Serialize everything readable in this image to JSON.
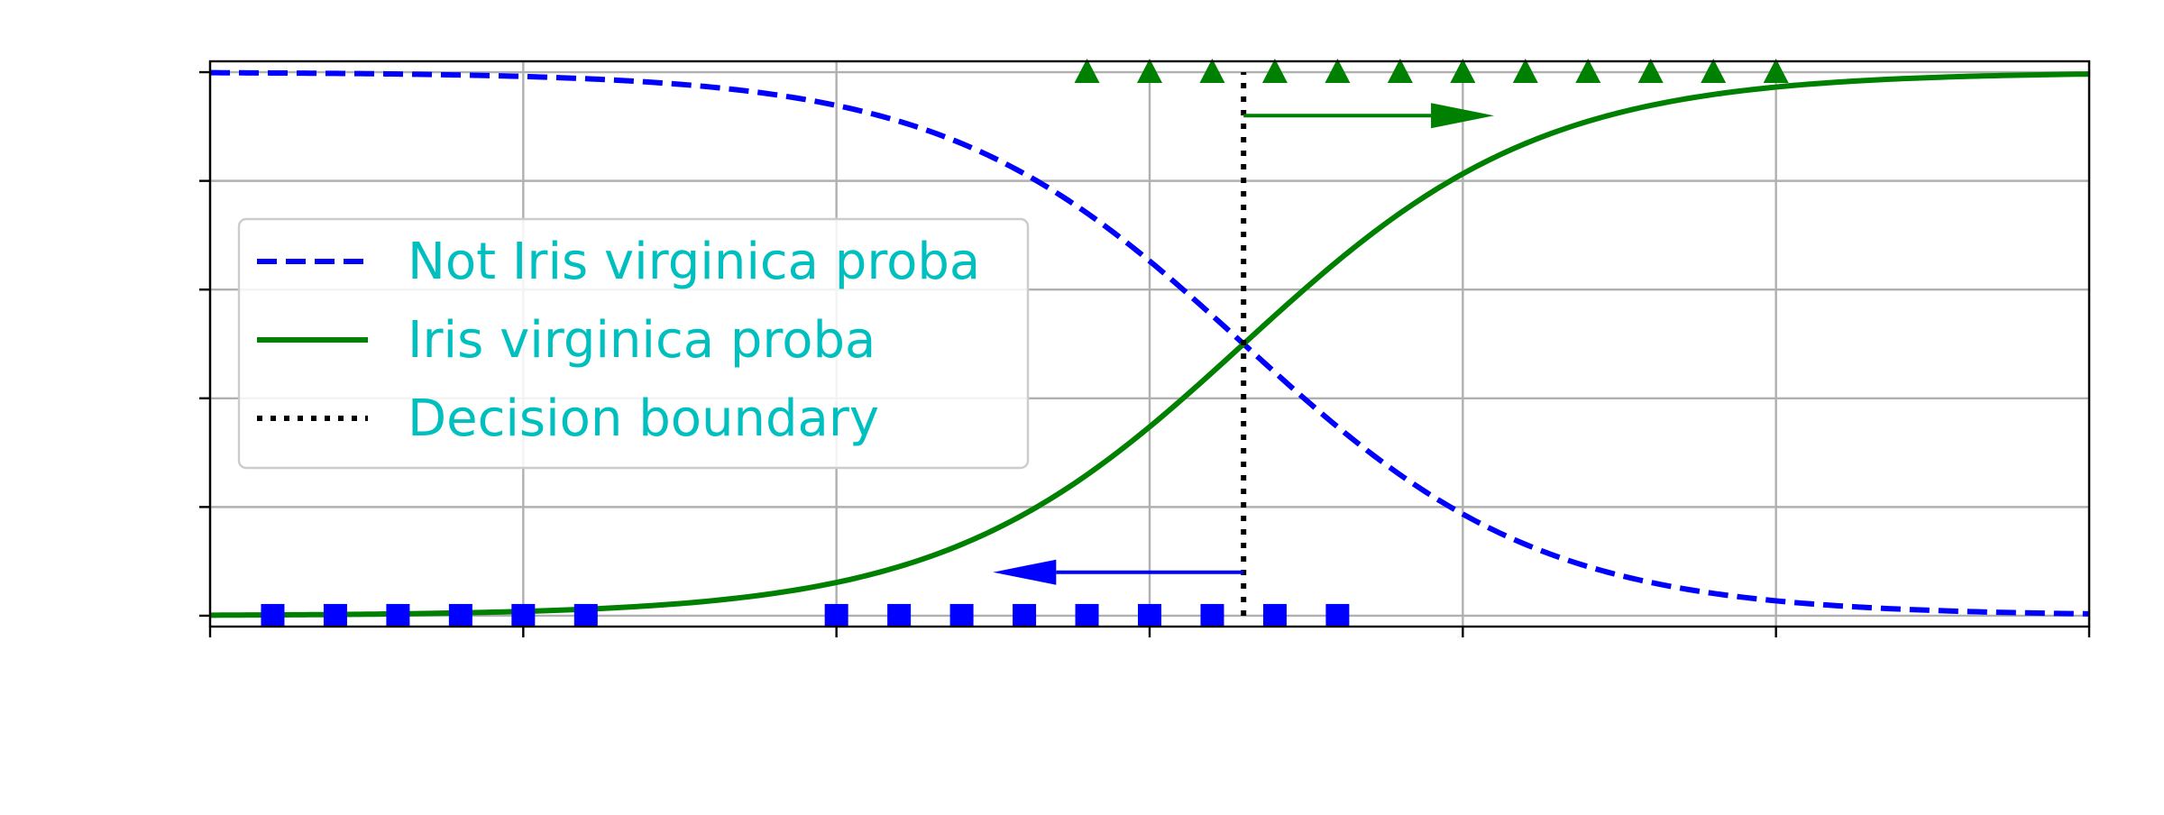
{
  "chart_data": {
    "type": "line",
    "title": "",
    "xlabel": "",
    "ylabel": "",
    "xlim": [
      0,
      3
    ],
    "ylim": [
      -0.02,
      1.02
    ],
    "grid": true,
    "show_tick_labels": false,
    "x_ticks": [
      0,
      0.5,
      1.0,
      1.5,
      2.0,
      2.5,
      3.0
    ],
    "y_ticks": [
      0,
      0.2,
      0.4,
      0.6,
      0.8,
      1.0
    ],
    "decision_boundary": 1.65,
    "logistic": {
      "midpoint": 1.65,
      "steepness": 4.2
    },
    "series": [
      {
        "name": "Not Iris virginica proba",
        "style": "dashed",
        "color": "#0000ff",
        "function": "1 - sigmoid"
      },
      {
        "name": "Iris virginica proba",
        "style": "solid",
        "color": "#008000",
        "function": "sigmoid"
      },
      {
        "name": "Decision boundary",
        "style": "dotted",
        "color": "#000000"
      }
    ],
    "class_0_points": {
      "marker": "square",
      "color": "#0000ff",
      "y": 0,
      "x": [
        0.1,
        0.2,
        0.3,
        0.4,
        0.5,
        0.6,
        1.0,
        1.1,
        1.2,
        1.3,
        1.4,
        1.5,
        1.6,
        1.7,
        1.8
      ]
    },
    "class_1_points": {
      "marker": "triangle",
      "color": "#008000",
      "y": 1,
      "x": [
        1.4,
        1.5,
        1.6,
        1.7,
        1.8,
        1.9,
        2.0,
        2.1,
        2.2,
        2.3,
        2.4,
        2.5
      ]
    },
    "arrows": [
      {
        "color": "#008000",
        "from": [
          1.65,
          0.92
        ],
        "to": [
          2.05,
          0.92
        ]
      },
      {
        "color": "#0000ff",
        "from": [
          1.65,
          0.08
        ],
        "to": [
          1.25,
          0.08
        ]
      }
    ],
    "legend": {
      "position": "center-left",
      "text_color": "#00bfbf",
      "entries": [
        "Not Iris virginica proba",
        "Iris virginica proba",
        "Decision boundary"
      ]
    }
  }
}
